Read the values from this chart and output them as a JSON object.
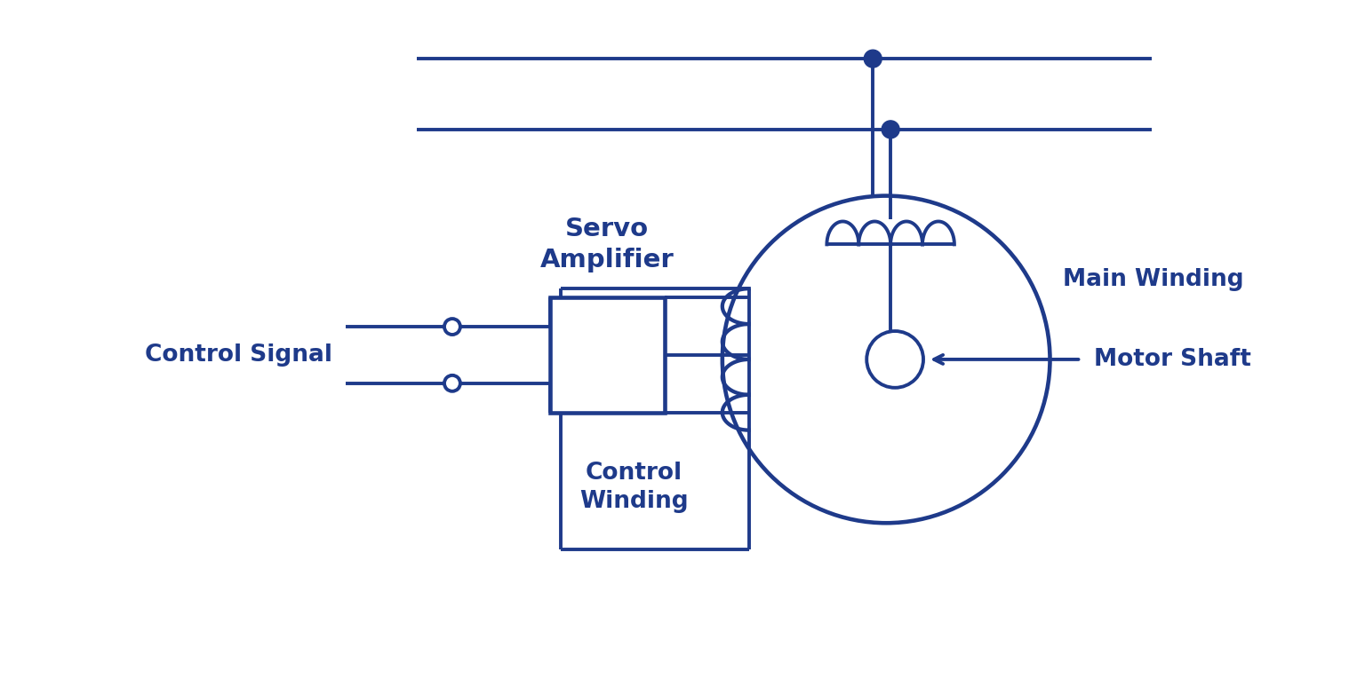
{
  "color": "#1e3a8a",
  "bg_color": "#ffffff",
  "line_width": 2.8,
  "fig_width": 15.36,
  "fig_height": 7.65,
  "labels": {
    "control_signal": "Control Signal",
    "servo_amplifier": "Servo\nAmplifier",
    "main_winding": "Main Winding",
    "control_winding": "Control\nWinding",
    "motor_shaft": "Motor Shaft"
  },
  "font_size_labels": 19,
  "font_size_amp": 21
}
